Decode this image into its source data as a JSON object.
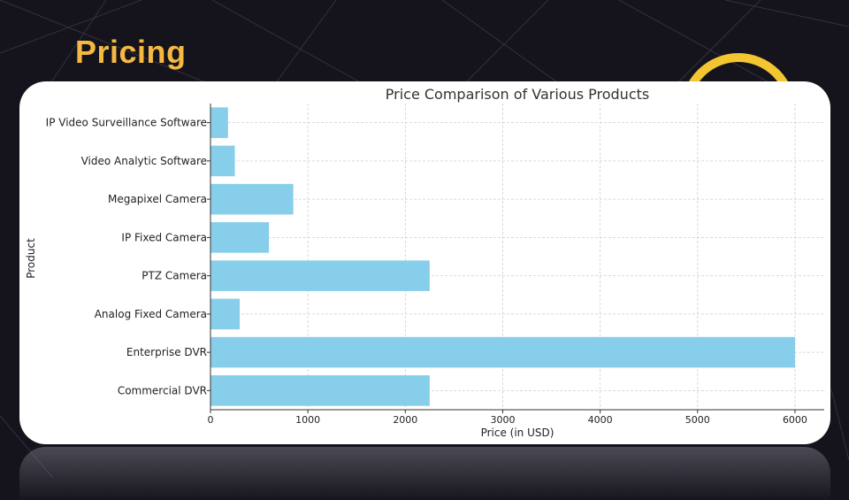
{
  "slide": {
    "title": "Pricing",
    "accent_color": "#f5b841",
    "ring_color": "#f3c531",
    "background_color": "#15141c"
  },
  "chart_data": {
    "type": "bar",
    "orientation": "horizontal",
    "title": "Price Comparison of Various Products",
    "xlabel": "Price (in USD)",
    "ylabel": "Product",
    "categories": [
      "IP Video Surveillance Software",
      "Video Analytic Software",
      "Megapixel Camera",
      "IP Fixed Camera",
      "PTZ Camera",
      "Analog Fixed Camera",
      "Enterprise DVR",
      "Commercial DVR"
    ],
    "values": [
      180,
      250,
      850,
      600,
      2250,
      300,
      6000,
      2250
    ],
    "xlim": [
      0,
      6300
    ],
    "xticks": [
      0,
      1000,
      2000,
      3000,
      4000,
      5000,
      6000
    ],
    "grid": true,
    "bar_color": "#87ceeb"
  }
}
